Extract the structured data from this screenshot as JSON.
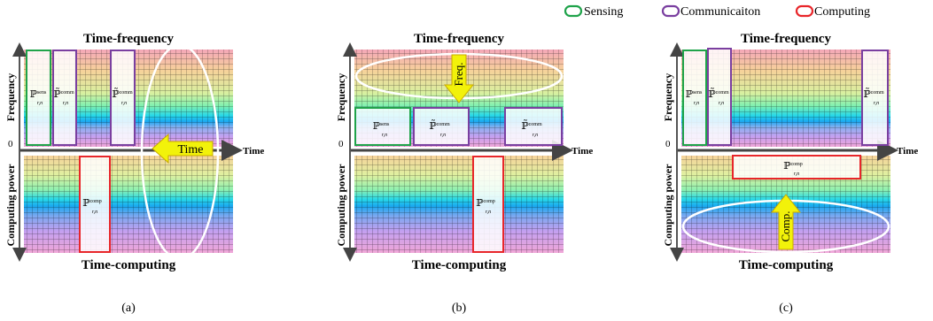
{
  "legend": [
    {
      "label": "Sensing",
      "color": "#1fa34a"
    },
    {
      "label": "Communicaiton",
      "color": "#7a3fa0"
    },
    {
      "label": "Computing",
      "color": "#e8262a"
    }
  ],
  "axes": {
    "top_title": "Time-frequency",
    "bottom_title": "Time-computing",
    "y_top": "Frequency",
    "y_bottom": "Computing power",
    "x": "Time",
    "origin": "0"
  },
  "block_labels": {
    "P": "ℙ",
    "P_tilde": "ℙ̃",
    "sub": "r,n",
    "sens": "sens",
    "comm": "comm",
    "comp": "comp"
  },
  "arrows": {
    "time": "Time",
    "freq": "Freq.",
    "comp": "Comp."
  },
  "captions": [
    "(a)",
    "(b)",
    "(c)"
  ],
  "colors": {
    "sensing": "#1fa34a",
    "communication": "#7a3fa0",
    "computing": "#e8262a",
    "arrow_fill": "#f2f20a",
    "arrow_stroke": "#c8a800",
    "axis": "#444444"
  }
}
